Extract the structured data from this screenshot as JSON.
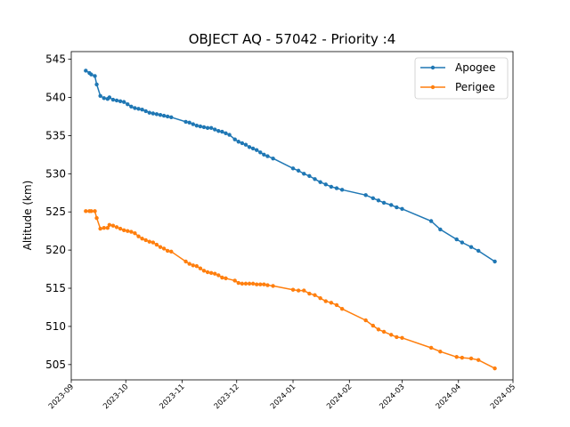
{
  "chart_data": {
    "type": "line",
    "title": "OBJECT AQ - 57042 - Priority :4",
    "xlabel": "",
    "ylabel": "Altitude (km)",
    "xlim": [
      "2023-09-01",
      "2024-05-01"
    ],
    "ylim": [
      503,
      546
    ],
    "xticks": [
      "2023-09",
      "2023-10",
      "2023-11",
      "2023-12",
      "2024-01",
      "2024-02",
      "2024-03",
      "2024-04",
      "2024-05"
    ],
    "yticks": [
      505,
      510,
      515,
      520,
      525,
      530,
      535,
      540,
      545
    ],
    "grid": false,
    "legend": "top-right",
    "series": [
      {
        "name": "Apogee",
        "color": "#1f77b4",
        "points": [
          [
            "2023-09-09",
            543.5
          ],
          [
            "2023-09-11",
            543.2
          ],
          [
            "2023-09-12",
            543.0
          ],
          [
            "2023-09-14",
            542.8
          ],
          [
            "2023-09-15",
            541.7
          ],
          [
            "2023-09-17",
            540.2
          ],
          [
            "2023-09-19",
            539.9
          ],
          [
            "2023-09-21",
            539.8
          ],
          [
            "2023-09-22",
            540.0
          ],
          [
            "2023-09-24",
            539.7
          ],
          [
            "2023-09-26",
            539.6
          ],
          [
            "2023-09-28",
            539.5
          ],
          [
            "2023-09-30",
            539.4
          ],
          [
            "2023-10-02",
            539.1
          ],
          [
            "2023-10-04",
            538.8
          ],
          [
            "2023-10-06",
            538.6
          ],
          [
            "2023-10-08",
            538.5
          ],
          [
            "2023-10-10",
            538.4
          ],
          [
            "2023-10-12",
            538.2
          ],
          [
            "2023-10-14",
            538.0
          ],
          [
            "2023-10-16",
            537.9
          ],
          [
            "2023-10-18",
            537.8
          ],
          [
            "2023-10-20",
            537.7
          ],
          [
            "2023-10-22",
            537.6
          ],
          [
            "2023-10-24",
            537.5
          ],
          [
            "2023-10-26",
            537.4
          ],
          [
            "2023-11-03",
            536.8
          ],
          [
            "2023-11-05",
            536.7
          ],
          [
            "2023-11-07",
            536.5
          ],
          [
            "2023-11-09",
            536.3
          ],
          [
            "2023-11-11",
            536.2
          ],
          [
            "2023-11-13",
            536.1
          ],
          [
            "2023-11-15",
            536.0
          ],
          [
            "2023-11-17",
            536.0
          ],
          [
            "2023-11-19",
            535.8
          ],
          [
            "2023-11-21",
            535.6
          ],
          [
            "2023-11-23",
            535.5
          ],
          [
            "2023-11-25",
            535.3
          ],
          [
            "2023-11-27",
            535.1
          ],
          [
            "2023-11-30",
            534.5
          ],
          [
            "2023-12-02",
            534.2
          ],
          [
            "2023-12-04",
            534.0
          ],
          [
            "2023-12-06",
            533.8
          ],
          [
            "2023-12-08",
            533.5
          ],
          [
            "2023-12-10",
            533.3
          ],
          [
            "2023-12-12",
            533.1
          ],
          [
            "2023-12-14",
            532.8
          ],
          [
            "2023-12-16",
            532.5
          ],
          [
            "2023-12-18",
            532.3
          ],
          [
            "2023-12-21",
            532.0
          ],
          [
            "2024-01-01",
            530.7
          ],
          [
            "2024-01-04",
            530.4
          ],
          [
            "2024-01-07",
            530.0
          ],
          [
            "2024-01-10",
            529.7
          ],
          [
            "2024-01-13",
            529.3
          ],
          [
            "2024-01-16",
            528.9
          ],
          [
            "2024-01-19",
            528.6
          ],
          [
            "2024-01-22",
            528.3
          ],
          [
            "2024-01-25",
            528.1
          ],
          [
            "2024-01-28",
            527.9
          ],
          [
            "2024-02-10",
            527.2
          ],
          [
            "2024-02-14",
            526.8
          ],
          [
            "2024-02-17",
            526.5
          ],
          [
            "2024-02-20",
            526.2
          ],
          [
            "2024-02-24",
            525.9
          ],
          [
            "2024-02-27",
            525.6
          ],
          [
            "2024-03-01",
            525.4
          ],
          [
            "2024-03-17",
            523.8
          ],
          [
            "2024-03-22",
            522.7
          ],
          [
            "2024-03-31",
            521.4
          ],
          [
            "2024-04-03",
            521.0
          ],
          [
            "2024-04-08",
            520.4
          ],
          [
            "2024-04-12",
            519.9
          ],
          [
            "2024-04-21",
            518.5
          ]
        ]
      },
      {
        "name": "Perigee",
        "color": "#ff7f0e",
        "points": [
          [
            "2023-09-09",
            525.1
          ],
          [
            "2023-09-11",
            525.1
          ],
          [
            "2023-09-12",
            525.1
          ],
          [
            "2023-09-14",
            525.1
          ],
          [
            "2023-09-15",
            524.2
          ],
          [
            "2023-09-17",
            522.8
          ],
          [
            "2023-09-19",
            522.9
          ],
          [
            "2023-09-21",
            522.9
          ],
          [
            "2023-09-22",
            523.3
          ],
          [
            "2023-09-24",
            523.2
          ],
          [
            "2023-09-26",
            523.0
          ],
          [
            "2023-09-28",
            522.8
          ],
          [
            "2023-09-30",
            522.6
          ],
          [
            "2023-10-02",
            522.5
          ],
          [
            "2023-10-04",
            522.4
          ],
          [
            "2023-10-06",
            522.2
          ],
          [
            "2023-10-08",
            521.8
          ],
          [
            "2023-10-10",
            521.5
          ],
          [
            "2023-10-12",
            521.3
          ],
          [
            "2023-10-14",
            521.1
          ],
          [
            "2023-10-16",
            521.0
          ],
          [
            "2023-10-18",
            520.7
          ],
          [
            "2023-10-20",
            520.4
          ],
          [
            "2023-10-22",
            520.2
          ],
          [
            "2023-10-24",
            519.9
          ],
          [
            "2023-10-26",
            519.8
          ],
          [
            "2023-11-03",
            518.5
          ],
          [
            "2023-11-05",
            518.2
          ],
          [
            "2023-11-07",
            518.0
          ],
          [
            "2023-11-09",
            517.9
          ],
          [
            "2023-11-11",
            517.6
          ],
          [
            "2023-11-13",
            517.3
          ],
          [
            "2023-11-15",
            517.1
          ],
          [
            "2023-11-17",
            517.0
          ],
          [
            "2023-11-19",
            516.9
          ],
          [
            "2023-11-21",
            516.7
          ],
          [
            "2023-11-23",
            516.4
          ],
          [
            "2023-11-25",
            516.3
          ],
          [
            "2023-11-30",
            516.0
          ],
          [
            "2023-12-02",
            515.7
          ],
          [
            "2023-12-04",
            515.6
          ],
          [
            "2023-12-06",
            515.6
          ],
          [
            "2023-12-08",
            515.6
          ],
          [
            "2023-12-10",
            515.6
          ],
          [
            "2023-12-12",
            515.5
          ],
          [
            "2023-12-14",
            515.5
          ],
          [
            "2023-12-16",
            515.5
          ],
          [
            "2023-12-18",
            515.4
          ],
          [
            "2023-12-21",
            515.3
          ],
          [
            "2024-01-01",
            514.8
          ],
          [
            "2024-01-04",
            514.7
          ],
          [
            "2024-01-07",
            514.7
          ],
          [
            "2024-01-10",
            514.3
          ],
          [
            "2024-01-13",
            514.1
          ],
          [
            "2024-01-16",
            513.7
          ],
          [
            "2024-01-19",
            513.3
          ],
          [
            "2024-01-22",
            513.1
          ],
          [
            "2024-01-25",
            512.8
          ],
          [
            "2024-01-28",
            512.3
          ],
          [
            "2024-02-10",
            510.8
          ],
          [
            "2024-02-14",
            510.1
          ],
          [
            "2024-02-17",
            509.6
          ],
          [
            "2024-02-20",
            509.3
          ],
          [
            "2024-02-24",
            508.9
          ],
          [
            "2024-02-27",
            508.6
          ],
          [
            "2024-03-01",
            508.5
          ],
          [
            "2024-03-17",
            507.2
          ],
          [
            "2024-03-22",
            506.7
          ],
          [
            "2024-03-31",
            506.0
          ],
          [
            "2024-04-03",
            505.9
          ],
          [
            "2024-04-08",
            505.8
          ],
          [
            "2024-04-12",
            505.6
          ],
          [
            "2024-04-21",
            504.5
          ]
        ]
      }
    ]
  }
}
